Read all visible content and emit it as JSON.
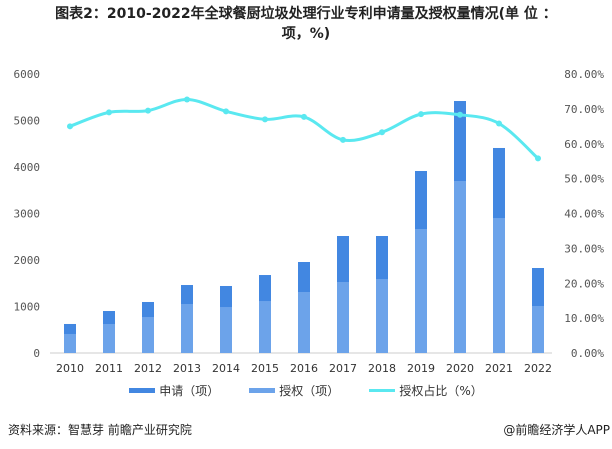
{
  "chart_data": {
    "type": "bar",
    "title_line1": "图表2：2010-2022年全球餐厨垃圾处理行业专利申请量及授权量情况(单 位 ：",
    "title_line2": "项，%)",
    "categories": [
      "2010",
      "2011",
      "2012",
      "2013",
      "2014",
      "2015",
      "2016",
      "2017",
      "2018",
      "2019",
      "2020",
      "2021",
      "2022"
    ],
    "series": [
      {
        "name": "申请（项）",
        "type": "bar",
        "color": "#4287e1",
        "values": [
          624,
          903,
          1097,
          1462,
          1441,
          1677,
          1957,
          2516,
          2516,
          3914,
          5419,
          4409,
          1828
        ]
      },
      {
        "name": "授权（项）",
        "type": "bar",
        "color": "#6ca3ea",
        "values": [
          409,
          624,
          774,
          1054,
          989,
          1118,
          1312,
          1527,
          1591,
          2667,
          3699,
          2903,
          1011
        ]
      },
      {
        "name": "授权占比（%）",
        "type": "line",
        "axis": "right",
        "color": "#5ae8f0",
        "values": [
          65.0,
          69.0,
          69.5,
          72.7,
          69.3,
          67.0,
          67.7,
          61.1,
          63.3,
          68.5,
          68.3,
          65.8,
          55.8
        ]
      }
    ],
    "ylim": [
      0,
      6000
    ],
    "yticks": [
      "0",
      "1000",
      "2000",
      "3000",
      "4000",
      "5000",
      "6000"
    ],
    "y2lim": [
      0,
      80
    ],
    "y2ticks": [
      "0.00%",
      "10.00%",
      "20.00%",
      "30.00%",
      "40.00%",
      "50.00%",
      "60.00%",
      "70.00%",
      "80.00%"
    ],
    "legend_position": "bottom"
  },
  "footer": {
    "source": "资料来源：智慧芽 前瞻产业研究院",
    "brand": "@前瞻经济学人APP"
  }
}
